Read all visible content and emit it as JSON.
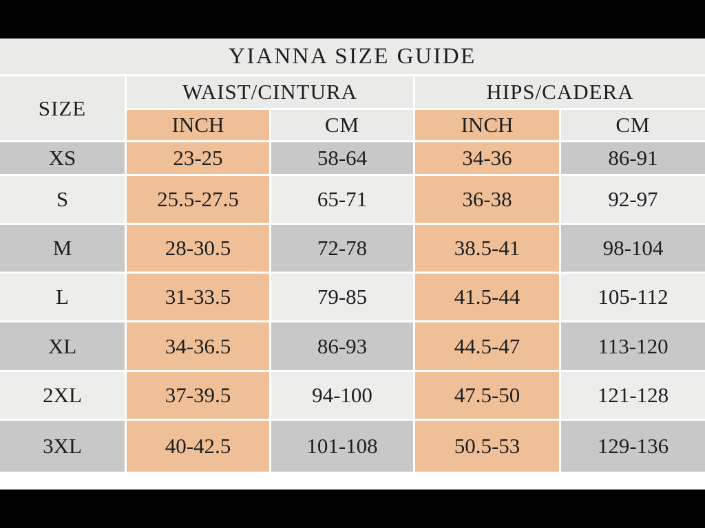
{
  "title": "YIANNA SIZE GUIDE",
  "table": {
    "size_header": "SIZE",
    "waist_group_header": "WAIST/CINTURA",
    "hips_group_header": "HIPS/CADERA",
    "unit_inch": "INCH",
    "unit_cm": "CM",
    "rows": [
      {
        "size": "XS",
        "waist_inch": "23-25",
        "waist_cm": "58-64",
        "hips_inch": "34-36",
        "hips_cm": "86-91"
      },
      {
        "size": "S",
        "waist_inch": "25.5-27.5",
        "waist_cm": "65-71",
        "hips_inch": "36-38",
        "hips_cm": "92-97"
      },
      {
        "size": "M",
        "waist_inch": "28-30.5",
        "waist_cm": "72-78",
        "hips_inch": "38.5-41",
        "hips_cm": "98-104"
      },
      {
        "size": "L",
        "waist_inch": "31-33.5",
        "waist_cm": "79-85",
        "hips_inch": "41.5-44",
        "hips_cm": "105-112"
      },
      {
        "size": "XL",
        "waist_inch": "34-36.5",
        "waist_cm": "86-93",
        "hips_inch": "44.5-47",
        "hips_cm": "113-120"
      },
      {
        "size": "2XL",
        "waist_inch": "37-39.5",
        "waist_cm": "94-100",
        "hips_inch": "47.5-50",
        "hips_cm": "121-128"
      },
      {
        "size": "3XL",
        "waist_inch": "40-42.5",
        "waist_cm": "101-108",
        "hips_inch": "50.5-53",
        "hips_cm": "129-136"
      }
    ]
  },
  "chart_data": {
    "type": "table",
    "title": "YIANNA SIZE GUIDE",
    "column_groups": [
      "WAIST/CINTURA",
      "HIPS/CADERA"
    ],
    "columns": [
      "SIZE",
      "WAIST INCH",
      "WAIST CM",
      "HIPS INCH",
      "HIPS CM"
    ],
    "rows": [
      [
        "XS",
        "23-25",
        "58-64",
        "34-36",
        "86-91"
      ],
      [
        "S",
        "25.5-27.5",
        "65-71",
        "36-38",
        "92-97"
      ],
      [
        "M",
        "28-30.5",
        "72-78",
        "38.5-41",
        "98-104"
      ],
      [
        "L",
        "31-33.5",
        "79-85",
        "41.5-44",
        "105-112"
      ],
      [
        "XL",
        "34-36.5",
        "86-93",
        "44.5-47",
        "113-120"
      ],
      [
        "2XL",
        "37-39.5",
        "94-100",
        "47.5-50",
        "121-128"
      ],
      [
        "3XL",
        "40-42.5",
        "101-108",
        "50.5-53",
        "129-136"
      ]
    ]
  },
  "colors": {
    "highlight_peach": "#efc098",
    "row_gray": "#c8c8c8",
    "row_light": "#ededec",
    "header_bg": "#eaeae9",
    "text": "#1e1e1e",
    "letterbox": "#000000",
    "background": "#ffffff"
  }
}
